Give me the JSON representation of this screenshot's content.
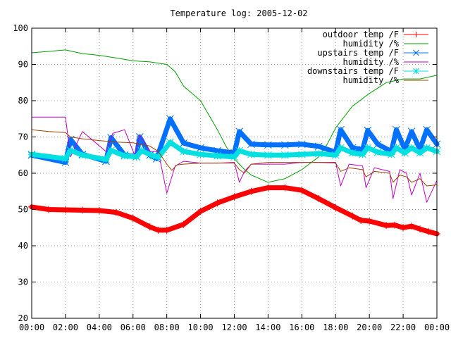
{
  "chart_data": {
    "type": "line",
    "title": "Temperature log: 2005-12-02",
    "xlabel": "",
    "ylabel": "",
    "x_unit": "time of day (hours)",
    "xlim": [
      0,
      24
    ],
    "ylim": [
      20,
      100
    ],
    "grid": true,
    "legend_position": "top-right",
    "x_ticks": [
      "00:00",
      "02:00",
      "04:00",
      "06:00",
      "08:00",
      "10:00",
      "12:00",
      "14:00",
      "16:00",
      "18:00",
      "20:00",
      "22:00",
      "00:00"
    ],
    "y_ticks": [
      "20",
      "30",
      "40",
      "50",
      "60",
      "70",
      "80",
      "90",
      "100"
    ],
    "series": [
      {
        "name": "outdoor temp /F",
        "color": "#ff0000",
        "marker": "plus",
        "points": [
          [
            0,
            50.7
          ],
          [
            1,
            50.0
          ],
          [
            2,
            49.9
          ],
          [
            3,
            49.8
          ],
          [
            4,
            49.7
          ],
          [
            5,
            49.2
          ],
          [
            6,
            47.6
          ],
          [
            7,
            45.2
          ],
          [
            7.5,
            44.3
          ],
          [
            8,
            44.3
          ],
          [
            9,
            45.9
          ],
          [
            10,
            49.5
          ],
          [
            11,
            51.8
          ],
          [
            12,
            53.5
          ],
          [
            13,
            55.0
          ],
          [
            14,
            56.0
          ],
          [
            15,
            56.0
          ],
          [
            16,
            55.3
          ],
          [
            17,
            53.0
          ],
          [
            18,
            50.5
          ],
          [
            19,
            48.2
          ],
          [
            19.5,
            47.0
          ],
          [
            20,
            46.8
          ],
          [
            21,
            45.6
          ],
          [
            21.5,
            45.7
          ],
          [
            22,
            45.0
          ],
          [
            22.5,
            45.4
          ],
          [
            23,
            44.6
          ],
          [
            23.5,
            43.9
          ],
          [
            24,
            43.3
          ]
        ]
      },
      {
        "name": "humidity /%",
        "color": "#00a000",
        "marker": "none",
        "points": [
          [
            0,
            93.2
          ],
          [
            1,
            93.6
          ],
          [
            2,
            94.0
          ],
          [
            3,
            93.0
          ],
          [
            4,
            92.5
          ],
          [
            5,
            91.8
          ],
          [
            6,
            91.0
          ],
          [
            7,
            90.7
          ],
          [
            8,
            90.0
          ],
          [
            8.5,
            88.0
          ],
          [
            9,
            84.0
          ],
          [
            10,
            80.0
          ],
          [
            11,
            72.0
          ],
          [
            11.5,
            67.5
          ],
          [
            12,
            64.0
          ],
          [
            12.5,
            61.5
          ],
          [
            13,
            59.5
          ],
          [
            14,
            57.5
          ],
          [
            15,
            58.5
          ],
          [
            16,
            61.0
          ],
          [
            17,
            64.5
          ],
          [
            17.5,
            68.0
          ],
          [
            18,
            72.5
          ],
          [
            19,
            78.5
          ],
          [
            20,
            82.0
          ],
          [
            21,
            85.0
          ],
          [
            22,
            86.0
          ],
          [
            23,
            86.0
          ],
          [
            24,
            87.0
          ]
        ]
      },
      {
        "name": "upstairs temp /F",
        "color": "#0070ff",
        "marker": "x",
        "points": [
          [
            0,
            65.0
          ],
          [
            2,
            63.0
          ],
          [
            2.3,
            69.3
          ],
          [
            3,
            65.2
          ],
          [
            4.4,
            63.3
          ],
          [
            4.7,
            69.8
          ],
          [
            5.5,
            65.0
          ],
          [
            6.2,
            64.6
          ],
          [
            6.4,
            70.0
          ],
          [
            7.0,
            65.0
          ],
          [
            7.4,
            64.0
          ],
          [
            8.2,
            75.0
          ],
          [
            9,
            68.3
          ],
          [
            10,
            67.0
          ],
          [
            11,
            66.2
          ],
          [
            12,
            65.6
          ],
          [
            12.3,
            71.5
          ],
          [
            13,
            68.0
          ],
          [
            14,
            67.8
          ],
          [
            15,
            67.8
          ],
          [
            16,
            68.0
          ],
          [
            17,
            67.4
          ],
          [
            18,
            65.8
          ],
          [
            18.3,
            72.0
          ],
          [
            19,
            67.0
          ],
          [
            19.6,
            66.5
          ],
          [
            19.9,
            71.8
          ],
          [
            20.5,
            68.0
          ],
          [
            21.3,
            66.0
          ],
          [
            21.6,
            72.0
          ],
          [
            22.1,
            66.6
          ],
          [
            22.5,
            71.5
          ],
          [
            23,
            66.6
          ],
          [
            23.4,
            72.0
          ],
          [
            24,
            68.0
          ]
        ]
      },
      {
        "name": "humidity /%",
        "color": "#c000c0",
        "marker": "none",
        "points": [
          [
            0,
            75.5
          ],
          [
            2,
            75.5
          ],
          [
            2.3,
            64.5
          ],
          [
            3,
            71.5
          ],
          [
            4.4,
            66.0
          ],
          [
            4.8,
            71.0
          ],
          [
            5.5,
            72.0
          ],
          [
            6.1,
            65.0
          ],
          [
            6.4,
            70.5
          ],
          [
            7.0,
            66.0
          ],
          [
            7.5,
            66.0
          ],
          [
            8.0,
            54.5
          ],
          [
            8.5,
            62.0
          ],
          [
            9,
            63.3
          ],
          [
            10,
            62.8
          ],
          [
            11,
            62.8
          ],
          [
            12,
            63.0
          ],
          [
            12.3,
            57.5
          ],
          [
            12.6,
            60.5
          ],
          [
            13,
            62.5
          ],
          [
            14,
            62.5
          ],
          [
            15,
            62.5
          ],
          [
            16,
            63.0
          ],
          [
            17,
            63.0
          ],
          [
            18,
            63.0
          ],
          [
            18.3,
            56.5
          ],
          [
            18.8,
            62.5
          ],
          [
            19.6,
            62.0
          ],
          [
            19.8,
            56.0
          ],
          [
            20.3,
            61.5
          ],
          [
            21.2,
            60.5
          ],
          [
            21.4,
            53.0
          ],
          [
            21.8,
            61.0
          ],
          [
            22.2,
            60.0
          ],
          [
            22.5,
            54.0
          ],
          [
            23.0,
            60.0
          ],
          [
            23.4,
            52.0
          ],
          [
            24,
            58.0
          ]
        ]
      },
      {
        "name": "downstairs temp /F",
        "color": "#00e0e0",
        "marker": "star",
        "points": [
          [
            0,
            65.2
          ],
          [
            2,
            64.0
          ],
          [
            2.3,
            66.3
          ],
          [
            3,
            65.0
          ],
          [
            4.4,
            63.8
          ],
          [
            4.7,
            66.3
          ],
          [
            5.5,
            64.8
          ],
          [
            6.2,
            64.5
          ],
          [
            6.5,
            66.2
          ],
          [
            7.2,
            64.8
          ],
          [
            7.5,
            64.4
          ],
          [
            8.2,
            68.5
          ],
          [
            9,
            66.0
          ],
          [
            10,
            65.2
          ],
          [
            11,
            64.8
          ],
          [
            12,
            64.5
          ],
          [
            12.3,
            66.2
          ],
          [
            13,
            65.2
          ],
          [
            14,
            65.0
          ],
          [
            15,
            65.0
          ],
          [
            16,
            65.2
          ],
          [
            17,
            65.4
          ],
          [
            18,
            65.0
          ],
          [
            18.3,
            67.0
          ],
          [
            19,
            65.6
          ],
          [
            19.6,
            65.2
          ],
          [
            19.9,
            67.0
          ],
          [
            20.5,
            65.8
          ],
          [
            21.3,
            65.2
          ],
          [
            21.6,
            67.0
          ],
          [
            22.1,
            65.6
          ],
          [
            22.5,
            67.0
          ],
          [
            23,
            65.6
          ],
          [
            23.4,
            67.0
          ],
          [
            24,
            66.0
          ]
        ]
      },
      {
        "name": "humidity /%",
        "color": "#a04000",
        "marker": "none",
        "points": [
          [
            0,
            72.0
          ],
          [
            1,
            71.5
          ],
          [
            2,
            71.2
          ],
          [
            2.3,
            70.0
          ],
          [
            3,
            69.5
          ],
          [
            4,
            69.0
          ],
          [
            5,
            68.6
          ],
          [
            6,
            68.4
          ],
          [
            7,
            67.5
          ],
          [
            7.5,
            66.0
          ],
          [
            8,
            62.5
          ],
          [
            8.3,
            60.8
          ],
          [
            8.6,
            62.3
          ],
          [
            9,
            62.5
          ],
          [
            10,
            62.8
          ],
          [
            11,
            62.8
          ],
          [
            12,
            62.8
          ],
          [
            12.3,
            61.0
          ],
          [
            12.6,
            60.0
          ],
          [
            13,
            62.5
          ],
          [
            14,
            63.0
          ],
          [
            15,
            63.0
          ],
          [
            16,
            63.0
          ],
          [
            17,
            63.0
          ],
          [
            18,
            62.8
          ],
          [
            18.3,
            60.5
          ],
          [
            18.8,
            61.5
          ],
          [
            19.6,
            61.0
          ],
          [
            19.8,
            59.0
          ],
          [
            20.3,
            60.5
          ],
          [
            21.2,
            60.0
          ],
          [
            21.4,
            57.5
          ],
          [
            21.8,
            59.5
          ],
          [
            22.2,
            59.0
          ],
          [
            22.5,
            57.5
          ],
          [
            23,
            58.5
          ],
          [
            23.4,
            56.5
          ],
          [
            24,
            56.8
          ]
        ]
      }
    ]
  }
}
